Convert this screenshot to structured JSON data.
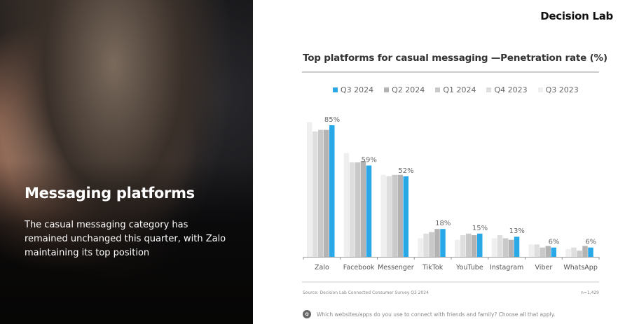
{
  "left_panel": {
    "heading": "Messaging platforms",
    "body": "The casual messaging category has remained unchanged this quarter, with Zalo maintaining its top position"
  },
  "logo": "Decision Lab",
  "footer": {
    "source": "Source: Decision Lab Connected Consumer Survey Q3 2024",
    "sample": "n=1,429",
    "question_badge": "Q",
    "question": "Which websites/apps do you use to connect with friends and family? Choose all that apply."
  },
  "chart_data": {
    "type": "bar",
    "title": "Top platforms for casual messaging —Penetration rate (%)",
    "categories": [
      "Zalo",
      "Facebook",
      "Messenger",
      "TikTok",
      "YouTube",
      "Instagram",
      "Viber",
      "WhatsApp"
    ],
    "ylim": [
      0,
      100
    ],
    "grid": false,
    "legend_position": "top",
    "series": [
      {
        "name": "Q3 2024",
        "color": "#29a8e8",
        "values": [
          85,
          59,
          52,
          18,
          15,
          13,
          6,
          6
        ],
        "labels": [
          "85%",
          "59%",
          "52%",
          "18%",
          "15%",
          "13%",
          "6%",
          "6%"
        ]
      },
      {
        "name": "Q2 2024",
        "color": "#b3b3b3",
        "values": [
          82,
          62,
          53,
          18,
          14,
          11,
          7,
          7
        ]
      },
      {
        "name": "Q1 2024",
        "color": "#c9c9c9",
        "values": [
          82,
          61,
          53,
          16,
          15,
          12,
          6,
          4
        ]
      },
      {
        "name": "Q4 2023",
        "color": "#dedede",
        "values": [
          81,
          61,
          52,
          15,
          14,
          14,
          8,
          6
        ]
      },
      {
        "name": "Q3 2023",
        "color": "#efefef",
        "values": [
          87,
          67,
          53,
          12,
          11,
          12,
          8,
          5
        ]
      }
    ]
  }
}
